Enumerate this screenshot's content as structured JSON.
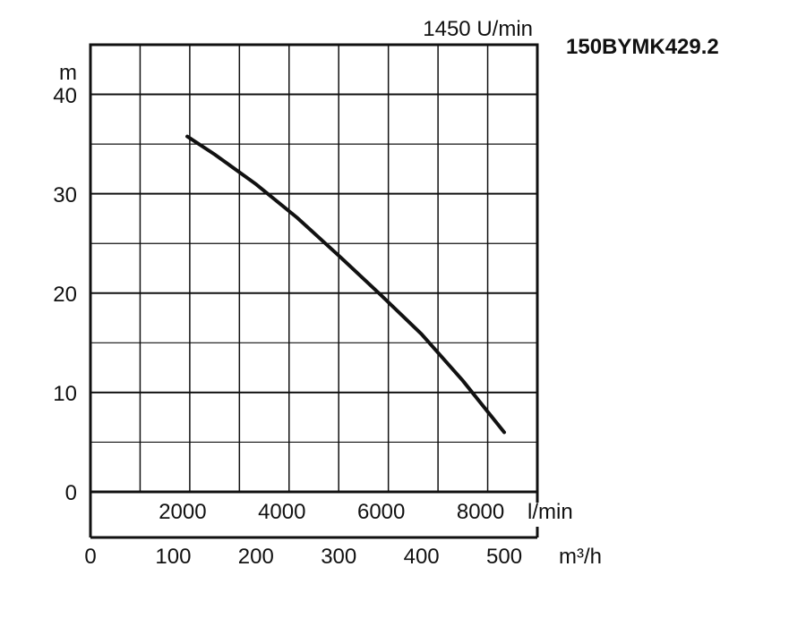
{
  "chart_data": {
    "type": "line",
    "title": "150BYMK429.2",
    "speed_label": "1450 U/min",
    "ylabel": "m",
    "ylim": [
      0,
      40
    ],
    "y_ticks": [
      "0",
      "10",
      "20",
      "30",
      "40"
    ],
    "x_lpm_ticks": [
      "2000",
      "4000",
      "6000",
      "8000"
    ],
    "x_lpm_unit": "l/min",
    "x_m3h_ticks": [
      "0",
      "100",
      "200",
      "300",
      "400",
      "500"
    ],
    "x_m3h_unit": "m³/h",
    "x_m3h_range": [
      0,
      540
    ],
    "series": [
      {
        "points": [
          {
            "x": 117,
            "y": 35.8
          },
          {
            "x": 150,
            "y": 34.0
          },
          {
            "x": 200,
            "y": 31.0
          },
          {
            "x": 250,
            "y": 27.6
          },
          {
            "x": 300,
            "y": 23.8
          },
          {
            "x": 350,
            "y": 19.9
          },
          {
            "x": 400,
            "y": 15.9
          },
          {
            "x": 450,
            "y": 11.2
          },
          {
            "x": 500,
            "y": 6.0
          }
        ]
      }
    ]
  }
}
